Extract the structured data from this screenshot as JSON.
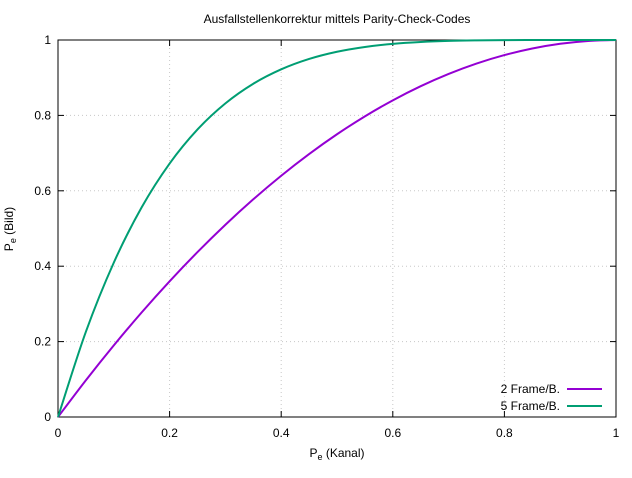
{
  "chart_data": {
    "type": "line",
    "title": "Ausfallstellenkorrektur mittels Parity-Check-Codes",
    "xlabel": {
      "main": "P",
      "sub": "e",
      "suffix": " (Kanal)"
    },
    "ylabel": {
      "main": "P",
      "sub": "e",
      "suffix": " (Bild)"
    },
    "xlim": [
      0,
      1
    ],
    "ylim": [
      0,
      1
    ],
    "x_ticks": [
      "0",
      "0.2",
      "0.4",
      "0.6",
      "0.8",
      "1"
    ],
    "y_ticks": [
      "0",
      "0.2",
      "0.4",
      "0.6",
      "0.8",
      "1"
    ],
    "grid": true,
    "legend_position": "bottom-right",
    "x": [
      0,
      0.05,
      0.1,
      0.15,
      0.2,
      0.25,
      0.3,
      0.35,
      0.4,
      0.45,
      0.5,
      0.55,
      0.6,
      0.65,
      0.7,
      0.75,
      0.8,
      0.85,
      0.9,
      0.95,
      1
    ],
    "series": [
      {
        "name": "2 Frame/B.",
        "color": "#9400d3",
        "values": [
          0,
          0.0975,
          0.19,
          0.2775,
          0.36,
          0.4375,
          0.51,
          0.5775,
          0.64,
          0.6975,
          0.75,
          0.7975,
          0.84,
          0.8775,
          0.91,
          0.9375,
          0.96,
          0.9775,
          0.99,
          0.9975,
          1
        ]
      },
      {
        "name": "5 Frame/B.",
        "color": "#009e73",
        "values": [
          0,
          0.2262,
          0.4095,
          0.5563,
          0.6723,
          0.7627,
          0.8319,
          0.884,
          0.9222,
          0.9497,
          0.9688,
          0.9815,
          0.9898,
          0.9947,
          0.9976,
          0.999,
          0.9997,
          0.9999,
          1,
          1,
          1
        ]
      }
    ]
  }
}
